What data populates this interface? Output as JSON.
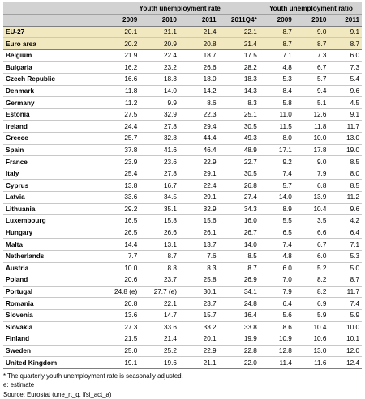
{
  "header": {
    "group_rate": "Youth unemployment rate",
    "group_ratio": "Youth unemployment ratio",
    "years_rate": [
      "2009",
      "2010",
      "2011",
      "2011Q4*"
    ],
    "years_ratio": [
      "2009",
      "2010",
      "2011"
    ]
  },
  "rows": [
    {
      "country": "EU-27",
      "v": [
        "20.1",
        "21.1",
        "21.4",
        "22.1",
        "8.7",
        "9.0",
        "9.1"
      ],
      "agg": true
    },
    {
      "country": "Euro area",
      "v": [
        "20.2",
        "20.9",
        "20.8",
        "21.4",
        "8.7",
        "8.7",
        "8.7"
      ],
      "agg": true
    },
    {
      "country": "Belgium",
      "v": [
        "21.9",
        "22.4",
        "18.7",
        "17.5",
        "7.1",
        "7.3",
        "6.0"
      ]
    },
    {
      "country": "Bulgaria",
      "v": [
        "16.2",
        "23.2",
        "26.6",
        "28.2",
        "4.8",
        "6.7",
        "7.3"
      ]
    },
    {
      "country": "Czech Republic",
      "v": [
        "16.6",
        "18.3",
        "18.0",
        "18.3",
        "5.3",
        "5.7",
        "5.4"
      ]
    },
    {
      "country": "Denmark",
      "v": [
        "11.8",
        "14.0",
        "14.2",
        "14.3",
        "8.4",
        "9.4",
        "9.6"
      ]
    },
    {
      "country": "Germany",
      "v": [
        "11.2",
        "9.9",
        "8.6",
        "8.3",
        "5.8",
        "5.1",
        "4.5"
      ]
    },
    {
      "country": "Estonia",
      "v": [
        "27.5",
        "32.9",
        "22.3",
        "25.1",
        "11.0",
        "12.6",
        "9.1"
      ]
    },
    {
      "country": "Ireland",
      "v": [
        "24.4",
        "27.8",
        "29.4",
        "30.5",
        "11.5",
        "11.8",
        "11.7"
      ]
    },
    {
      "country": "Greece",
      "v": [
        "25.7",
        "32.8",
        "44.4",
        "49.3",
        "8.0",
        "10.0",
        "13.0"
      ]
    },
    {
      "country": "Spain",
      "v": [
        "37.8",
        "41.6",
        "46.4",
        "48.9",
        "17.1",
        "17.8",
        "19.0"
      ]
    },
    {
      "country": "France",
      "v": [
        "23.9",
        "23.6",
        "22.9",
        "22.7",
        "9.2",
        "9.0",
        "8.5"
      ]
    },
    {
      "country": "Italy",
      "v": [
        "25.4",
        "27.8",
        "29.1",
        "30.5",
        "7.4",
        "7.9",
        "8.0"
      ]
    },
    {
      "country": "Cyprus",
      "v": [
        "13.8",
        "16.7",
        "22.4",
        "26.8",
        "5.7",
        "6.8",
        "8.5"
      ]
    },
    {
      "country": "Latvia",
      "v": [
        "33.6",
        "34.5",
        "29.1",
        "27.4",
        "14.0",
        "13.9",
        "11.2"
      ]
    },
    {
      "country": "Lithuania",
      "v": [
        "29.2",
        "35.1",
        "32.9",
        "34.3",
        "8.9",
        "10.4",
        "9.6"
      ]
    },
    {
      "country": "Luxembourg",
      "v": [
        "16.5",
        "15.8",
        "15.6",
        "16.0",
        "5.5",
        "3.5",
        "4.2"
      ]
    },
    {
      "country": "Hungary",
      "v": [
        "26.5",
        "26.6",
        "26.1",
        "26.7",
        "6.5",
        "6.6",
        "6.4"
      ]
    },
    {
      "country": "Malta",
      "v": [
        "14.4",
        "13.1",
        "13.7",
        "14.0",
        "7.4",
        "6.7",
        "7.1"
      ]
    },
    {
      "country": "Netherlands",
      "v": [
        "7.7",
        "8.7",
        "7.6",
        "8.5",
        "4.8",
        "6.0",
        "5.3"
      ]
    },
    {
      "country": "Austria",
      "v": [
        "10.0",
        "8.8",
        "8.3",
        "8.7",
        "6.0",
        "5.2",
        "5.0"
      ]
    },
    {
      "country": "Poland",
      "v": [
        "20.6",
        "23.7",
        "25.8",
        "26.9",
        "7.0",
        "8.2",
        "8.7"
      ]
    },
    {
      "country": "Portugal",
      "v": [
        "24.8 (e)",
        "27.7 (e)",
        "30.1",
        "34.1",
        "7.9",
        "8.2",
        "11.7"
      ]
    },
    {
      "country": "Romania",
      "v": [
        "20.8",
        "22.1",
        "23.7",
        "24.8",
        "6.4",
        "6.9",
        "7.4"
      ]
    },
    {
      "country": "Slovenia",
      "v": [
        "13.6",
        "14.7",
        "15.7",
        "16.4",
        "5.6",
        "5.9",
        "5.9"
      ]
    },
    {
      "country": "Slovakia",
      "v": [
        "27.3",
        "33.6",
        "33.2",
        "33.8",
        "8.6",
        "10.4",
        "10.0"
      ]
    },
    {
      "country": "Finland",
      "v": [
        "21.5",
        "21.4",
        "20.1",
        "19.9",
        "10.9",
        "10.6",
        "10.1"
      ]
    },
    {
      "country": "Sweden",
      "v": [
        "25.0",
        "25.2",
        "22.9",
        "22.8",
        "12.8",
        "13.0",
        "12.0"
      ]
    },
    {
      "country": "United Kingdom",
      "v": [
        "19.1",
        "19.6",
        "21.1",
        "22.0",
        "11.4",
        "11.6",
        "12.4"
      ]
    }
  ],
  "notes": {
    "footnote": "* The quarterly youth unemployment rate is seasonally adjusted.",
    "estimate": "e: estimate",
    "source": "Source: Eurostat (une_rt_q, lfsi_act_a)"
  }
}
